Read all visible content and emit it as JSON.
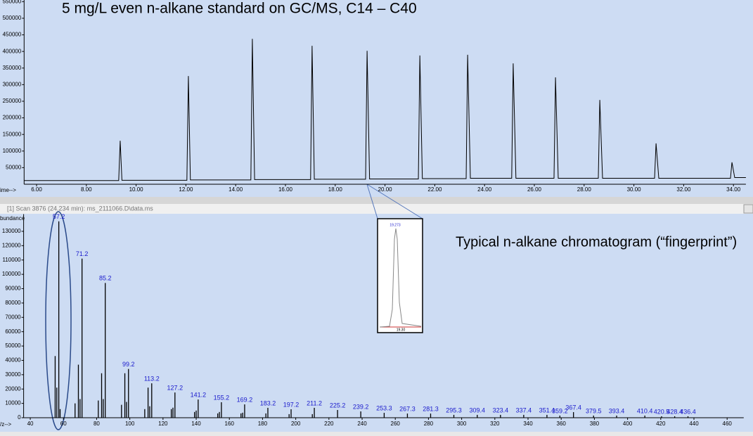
{
  "chart_data": [
    {
      "type": "line",
      "title": "5 mg/L even n-alkane standard on GC/MS, C14 – C40",
      "x_label": "ime-->",
      "x": [
        5.5,
        9.3,
        9.36,
        9.43,
        12.04,
        12.1,
        12.18,
        14.61,
        14.67,
        14.76,
        17.01,
        17.07,
        17.16,
        19.22,
        19.28,
        19.38,
        21.34,
        21.4,
        21.5,
        23.26,
        23.32,
        23.43,
        25.09,
        25.15,
        25.26,
        26.79,
        26.85,
        26.96,
        28.57,
        28.63,
        28.74,
        30.83,
        30.89,
        31.0,
        33.88,
        33.94,
        34.05,
        34.5
      ],
      "series": [
        {
          "color": "#000000",
          "values": [
            11000,
            11000,
            131000,
            12000,
            12000,
            326000,
            13000,
            13000,
            438000,
            14000,
            14000,
            417000,
            15000,
            15000,
            402000,
            16000,
            16000,
            388000,
            17000,
            17000,
            390000,
            18000,
            18000,
            364000,
            18000,
            18000,
            322000,
            18000,
            18000,
            254000,
            18000,
            18000,
            123000,
            18000,
            18000,
            66000,
            20000,
            20000
          ]
        }
      ],
      "xlim": [
        5.5,
        34.5
      ],
      "xticks": [
        {
          "value": 6,
          "label": "6.00"
        },
        {
          "value": 8,
          "label": "8.00"
        },
        {
          "value": 10,
          "label": "10.00"
        },
        {
          "value": 12,
          "label": "12.00"
        },
        {
          "value": 14,
          "label": "14.00"
        },
        {
          "value": 16,
          "label": "16.00"
        },
        {
          "value": 18,
          "label": "18.00"
        },
        {
          "value": 20,
          "label": "20.00"
        },
        {
          "value": 22,
          "label": "22.00"
        },
        {
          "value": 24,
          "label": "24.00"
        },
        {
          "value": 26,
          "label": "26.00"
        },
        {
          "value": 28,
          "label": "28.00"
        },
        {
          "value": 30,
          "label": "30.00"
        },
        {
          "value": 32,
          "label": "32.00"
        },
        {
          "value": 34,
          "label": "34.00"
        }
      ],
      "ylim": [
        0,
        555000
      ],
      "yticks": [
        50000,
        100000,
        150000,
        200000,
        250000,
        300000,
        350000,
        400000,
        450000,
        500000,
        550000
      ]
    },
    {
      "type": "bar",
      "scan_header": "[1] Scan 3876 (24.234 min): ms_2111066.D\\data.ms",
      "y_label": "bundance",
      "x_label": "/z-->",
      "annotation": "Typical n-alkane chromatogram (“fingerprint”)",
      "series": [
        {
          "name": "labeled",
          "color": "#000000",
          "x": [
            57.2,
            71.2,
            85.2,
            99.2,
            113.2,
            127.2,
            141.2,
            155.2,
            169.2,
            183.2,
            197.2,
            211.2,
            225.2,
            239.2,
            253.3,
            267.3,
            281.3,
            295.3,
            309.4,
            323.4,
            337.4,
            351.4,
            359.2,
            367.4,
            379.5,
            393.4,
            410.4,
            420.5,
            428.4,
            436.4
          ],
          "values": [
            137000,
            111000,
            94000,
            34000,
            24000,
            17600,
            12700,
            10800,
            9300,
            6900,
            5900,
            6900,
            5400,
            4400,
            3400,
            2900,
            2900,
            2000,
            2000,
            2000,
            2000,
            2000,
            1500,
            3900,
            1500,
            1500,
            1500,
            1000,
            1000,
            1000
          ]
        },
        {
          "name": "unlabeled",
          "color": "#000000",
          "x": [
            55,
            56,
            58,
            67,
            69,
            70,
            81,
            83,
            84,
            95,
            97,
            98,
            109,
            111,
            112,
            125,
            126,
            139,
            140,
            153,
            154,
            167,
            168,
            182,
            196,
            210
          ],
          "values": [
            43000,
            21000,
            6000,
            10000,
            37000,
            13000,
            12000,
            31000,
            13000,
            9000,
            31000,
            11000,
            6000,
            21000,
            8000,
            6000,
            7000,
            4000,
            5000,
            3000,
            4000,
            3000,
            3500,
            3000,
            2500,
            2500
          ]
        }
      ],
      "xlim": [
        36,
        470
      ],
      "xticks": [
        40,
        60,
        80,
        100,
        120,
        140,
        160,
        180,
        200,
        220,
        240,
        260,
        280,
        300,
        320,
        340,
        360,
        380,
        400,
        420,
        440,
        460
      ],
      "ylim": [
        0,
        142000
      ],
      "yticks": [
        0,
        10000,
        20000,
        30000,
        40000,
        50000,
        60000,
        70000,
        80000,
        90000,
        100000,
        110000,
        120000,
        130000
      ]
    }
  ],
  "inset": {
    "apex_label": "19.273",
    "xtick": "19.30"
  }
}
